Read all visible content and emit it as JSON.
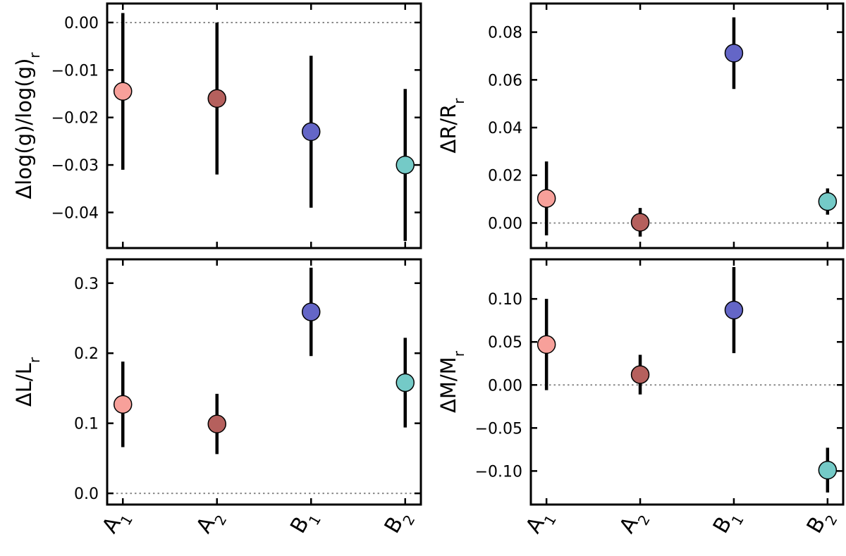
{
  "chart_data": [
    {
      "type": "scatter",
      "panel": "top-left",
      "title": "",
      "ylabel": "Δlog(g)/log(g)",
      "ylabel_subscript": "r",
      "categories": [
        "A",
        "A",
        "B",
        "B"
      ],
      "category_subscripts": [
        "1",
        "2",
        "1",
        "2"
      ],
      "show_xlabels": false,
      "ylim": [
        -0.0475,
        0.004
      ],
      "yticks": [
        0.0,
        -0.01,
        -0.02,
        -0.03,
        -0.04
      ],
      "ytick_labels": [
        "0.00",
        "−0.01",
        "−0.02",
        "−0.03",
        "−0.04"
      ],
      "values": [
        -0.0145,
        -0.016,
        -0.023,
        -0.03
      ],
      "errors": [
        0.0165,
        0.016,
        0.016,
        0.016
      ],
      "reference_line": 0.0
    },
    {
      "type": "scatter",
      "panel": "top-right",
      "title": "",
      "ylabel": "ΔR/R",
      "ylabel_subscript": "r",
      "categories": [
        "A",
        "A",
        "B",
        "B"
      ],
      "category_subscripts": [
        "1",
        "2",
        "1",
        "2"
      ],
      "show_xlabels": false,
      "ylim": [
        -0.0105,
        0.092
      ],
      "yticks": [
        0.0,
        0.02,
        0.04,
        0.06,
        0.08
      ],
      "ytick_labels": [
        "0.00",
        "0.02",
        "0.04",
        "0.06",
        "0.08"
      ],
      "values": [
        0.0103,
        0.0003,
        0.0712,
        0.009
      ],
      "errors": [
        0.0155,
        0.006,
        0.015,
        0.0055
      ],
      "reference_line": 0.0
    },
    {
      "type": "scatter",
      "panel": "bottom-left",
      "title": "",
      "ylabel": "ΔL/L",
      "ylabel_subscript": "r",
      "categories": [
        "A",
        "A",
        "B",
        "B"
      ],
      "category_subscripts": [
        "1",
        "2",
        "1",
        "2"
      ],
      "show_xlabels": true,
      "ylim": [
        -0.016,
        0.334
      ],
      "yticks": [
        0.0,
        0.1,
        0.2,
        0.3
      ],
      "ytick_labels": [
        "0.0",
        "0.1",
        "0.2",
        "0.3"
      ],
      "values": [
        0.127,
        0.099,
        0.259,
        0.158
      ],
      "errors": [
        0.061,
        0.043,
        0.063,
        0.064
      ],
      "reference_line": 0.0
    },
    {
      "type": "scatter",
      "panel": "bottom-right",
      "title": "",
      "ylabel": "ΔM/M",
      "ylabel_subscript": "r",
      "categories": [
        "A",
        "A",
        "B",
        "B"
      ],
      "category_subscripts": [
        "1",
        "2",
        "1",
        "2"
      ],
      "show_xlabels": true,
      "ylim": [
        -0.139,
        0.146
      ],
      "yticks": [
        0.1,
        0.05,
        0.0,
        -0.05,
        -0.1
      ],
      "ytick_labels": [
        "0.10",
        "0.05",
        "0.00",
        "−0.05",
        "−0.10"
      ],
      "values": [
        0.047,
        0.012,
        0.087,
        -0.099
      ],
      "errors": [
        0.053,
        0.023,
        0.05,
        0.026
      ],
      "reference_line": 0.0
    }
  ],
  "colors": {
    "points": [
      "#f7a09a",
      "#b5605d",
      "#6466c7",
      "#74cac7"
    ],
    "errorbar": "#000000",
    "reference_line": "#888888",
    "axes": "#000000"
  }
}
